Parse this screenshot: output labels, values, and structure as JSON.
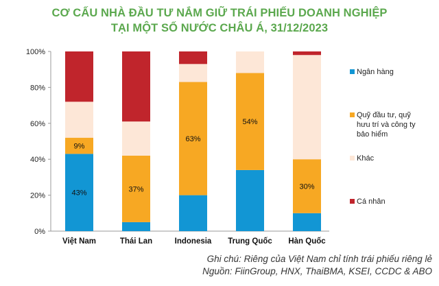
{
  "title_lines": [
    "CƠ CẤU NHÀ ĐẦU TƯ NẮM GIỮ TRÁI PHIẾU DOANH NGHIỆP",
    "TẠI MỘT SỐ NƯỚC CHÂU Á, 31/12/2023"
  ],
  "notes": [
    "Ghi chú: Riêng của Việt Nam chỉ tính trái phiếu riêng lẻ",
    "Nguồn: FiinGroup, HNX, ThaiBMA, KSEI, CCDC & ABO"
  ],
  "chart_data": {
    "type": "bar",
    "stacked": true,
    "categories": [
      "Việt Nam",
      "Thái Lan",
      "Indonesia",
      "Trung Quốc",
      "Hàn Quốc"
    ],
    "series": [
      {
        "name": "Ngân hàng",
        "color": "#1296d4",
        "values": [
          43,
          5,
          20,
          34,
          10
        ]
      },
      {
        "name": "Quỹ đầu tư, quỹ hưu trí và công ty bảo hiểm",
        "color": "#f7a823",
        "values": [
          9,
          37,
          63,
          54,
          30
        ]
      },
      {
        "name": "Khác",
        "color": "#fde7d7",
        "values": [
          20,
          19,
          10,
          12,
          58
        ]
      },
      {
        "name": "Cá nhân",
        "color": "#c0252c",
        "values": [
          28,
          39,
          7,
          0,
          2
        ]
      }
    ],
    "data_labels": [
      {
        "category": "Việt Nam",
        "series": "Ngân hàng",
        "text": "43%"
      },
      {
        "category": "Việt Nam",
        "series": "Quỹ đầu tư, quỹ hưu trí và công ty bảo hiểm",
        "text": "9%"
      },
      {
        "category": "Thái Lan",
        "series": "Quỹ đầu tư, quỹ hưu trí và công ty bảo hiểm",
        "text": "37%"
      },
      {
        "category": "Indonesia",
        "series": "Quỹ đầu tư, quỹ hưu trí và công ty bảo hiểm",
        "text": "63%"
      },
      {
        "category": "Trung Quốc",
        "series": "Quỹ đầu tư, quỹ hưu trí và công ty bảo hiểm",
        "text": "54%"
      },
      {
        "category": "Hàn Quốc",
        "series": "Quỹ đầu tư, quỹ hưu trí và công ty bảo hiểm",
        "text": "30%"
      }
    ],
    "y_ticks": [
      "0%",
      "20%",
      "40%",
      "60%",
      "80%",
      "100%"
    ],
    "ylim": [
      0,
      100
    ],
    "grid": false,
    "legend": "right",
    "title": "CƠ CẤU NHÀ ĐẦU TƯ NẮM GIỮ TRÁI PHIẾU DOANH NGHIỆP TẠI MỘT SỐ NƯỚC CHÂU Á, 31/12/2023",
    "xlabel": "",
    "ylabel": ""
  }
}
